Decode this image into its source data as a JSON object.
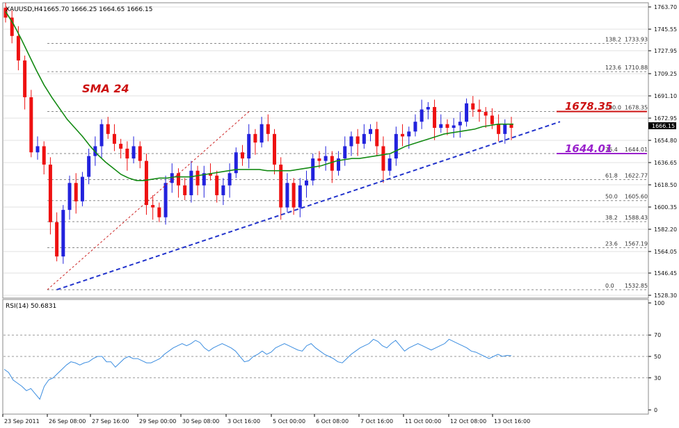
{
  "header": {
    "symbol": "XAUUSD,H4",
    "ohlc": "1665.70 1666.25 1664.65 1666.15",
    "rsi_label": "RSI(14) 50.6831"
  },
  "annotations": {
    "sma_label": "SMA 24",
    "level_upper": "1678.35",
    "level_lower": "1644.01",
    "current_price": "1666.15"
  },
  "colors": {
    "bull": "#2222dd",
    "bear": "#ee1111",
    "sma": "#138a13",
    "trendline": "#2233cc",
    "fib": "#cc2222",
    "rsi": "#3b8de0",
    "upper_level": "#cc1111",
    "lower_level": "#9a22cc"
  },
  "chart_data": [
    {
      "type": "candlestick",
      "title": "XAUUSD,H4",
      "x_ticks": [
        "23 Sep 2011",
        "26 Sep 08:00",
        "27 Sep 16:00",
        "29 Sep 00:00",
        "30 Sep 08:00",
        "3 Oct 16:00",
        "5 Oct 00:00",
        "6 Oct 08:00",
        "7 Oct 16:00",
        "11 Oct 00:00",
        "12 Oct 08:00",
        "13 Oct 16:00"
      ],
      "y_ticks": [
        "1763.70",
        "1745.55",
        "1727.95",
        "1709.25",
        "1691.10",
        "1672.95",
        "1654.80",
        "1636.65",
        "1618.50",
        "1600.35",
        "1582.20",
        "1564.05",
        "1546.45",
        "1528.30"
      ],
      "ylim": [
        1528.3,
        1763.7
      ],
      "grid": true,
      "close": [
        1755,
        1740,
        1720,
        1690,
        1645,
        1650,
        1635,
        1588,
        1560,
        1598,
        1620,
        1605,
        1625,
        1642,
        1650,
        1668,
        1660,
        1652,
        1648,
        1640,
        1650,
        1638,
        1602,
        1600,
        1592,
        1620,
        1628,
        1618,
        1610,
        1630,
        1618,
        1628,
        1626,
        1610,
        1618,
        1628,
        1645,
        1640,
        1660,
        1653,
        1668,
        1660,
        1635,
        1600,
        1620,
        1600,
        1618,
        1622,
        1640,
        1638,
        1642,
        1630,
        1640,
        1650,
        1658,
        1652,
        1660,
        1664,
        1650,
        1630,
        1640,
        1660,
        1658,
        1662,
        1670,
        1680,
        1682,
        1665,
        1668,
        1665,
        1667,
        1670,
        1685,
        1680,
        1678,
        1675,
        1668,
        1660,
        1668,
        1665
      ],
      "sma24": [
        1760,
        1750,
        1738,
        1725,
        1712,
        1700,
        1690,
        1681,
        1672,
        1665,
        1658,
        1650,
        1643,
        1637,
        1632,
        1627,
        1624,
        1622,
        1622,
        1623,
        1624,
        1624,
        1625,
        1625,
        1625,
        1626,
        1627,
        1628,
        1629,
        1630,
        1631,
        1631,
        1631,
        1631,
        1630,
        1630,
        1630,
        1630,
        1631,
        1632,
        1633,
        1634,
        1636,
        1638,
        1639,
        1640,
        1640,
        1641,
        1642,
        1643,
        1644,
        1647,
        1650,
        1652,
        1654,
        1656,
        1658,
        1660,
        1661,
        1662,
        1663,
        1664,
        1666,
        1667,
        1668,
        1668,
        1668
      ],
      "fib_levels": [
        {
          "ratio": "138.2",
          "price": "1733.93"
        },
        {
          "ratio": "123.6",
          "price": "1710.88"
        },
        {
          "ratio": "100.0",
          "price": "1678.35"
        },
        {
          "ratio": "76.4",
          "price": "1644.01"
        },
        {
          "ratio": "61.8",
          "price": "1622.77"
        },
        {
          "ratio": "50.0",
          "price": "1605.60"
        },
        {
          "ratio": "38.2",
          "price": "1588.43"
        },
        {
          "ratio": "23.6",
          "price": "1567.19"
        },
        {
          "ratio": "0.0",
          "price": "1532.85"
        }
      ],
      "trendline": {
        "from": [
          8,
          1532.85
        ],
        "to": [
          92,
          1670
        ]
      },
      "horizontal_levels": [
        1678.35,
        1644.01
      ]
    },
    {
      "type": "line",
      "title": "RSI(14) 50.6831",
      "y_ticks": [
        "100",
        "70",
        "50",
        "30",
        "0"
      ],
      "ylim": [
        0,
        100
      ],
      "levels": [
        70,
        50,
        30
      ],
      "values": [
        38,
        35,
        28,
        25,
        22,
        18,
        20,
        15,
        10,
        22,
        28,
        30,
        34,
        38,
        42,
        45,
        44,
        42,
        44,
        45,
        48,
        50,
        50,
        45,
        45,
        40,
        44,
        48,
        50,
        48,
        48,
        46,
        44,
        44,
        46,
        48,
        52,
        55,
        58,
        60,
        62,
        60,
        62,
        65,
        63,
        58,
        55,
        58,
        60,
        62,
        60,
        58,
        55,
        50,
        45,
        46,
        50,
        52,
        55,
        52,
        54,
        58,
        60,
        62,
        60,
        58,
        56,
        55,
        60,
        62,
        58,
        55,
        52,
        50,
        48,
        45,
        44,
        48,
        52,
        55,
        58,
        60,
        62,
        66,
        64,
        60,
        58,
        62,
        65,
        60,
        55,
        58,
        60,
        62,
        60,
        58,
        56,
        58,
        60,
        62,
        66,
        64,
        62,
        60,
        58,
        55,
        54,
        52,
        50,
        48,
        50,
        52,
        50,
        51,
        50.6831
      ]
    }
  ]
}
